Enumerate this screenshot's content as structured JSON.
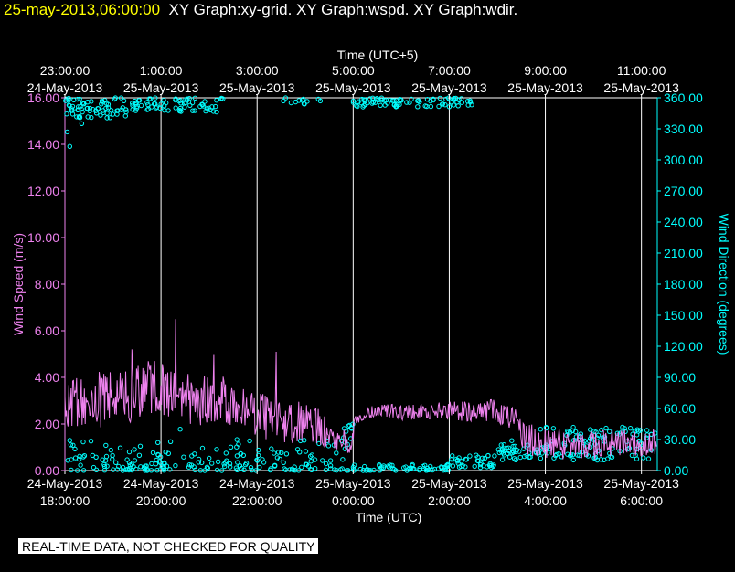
{
  "header": {
    "datetime": "25-may-2013,06:00:00",
    "graphs": "XY Graph:xy-grid.  XY Graph:wspd.  XY Graph:wdir."
  },
  "disclaimer": "REAL-TIME DATA, NOT CHECKED FOR QUALITY",
  "colors": {
    "background": "#000000",
    "speed": "#ee82ee",
    "direction": "#00ffff",
    "axis": "#ffffff",
    "header_date": "#ffff00"
  },
  "chart_data": {
    "type": "line",
    "x_start_hours": 0,
    "x_end_hours": 12.33,
    "top_axis": {
      "label": "Time (UTC+5)",
      "ticks": [
        {
          "h": 0,
          "time": "23:00:00",
          "date": "24-May-2013"
        },
        {
          "h": 2,
          "time": "1:00:00",
          "date": "25-May-2013"
        },
        {
          "h": 4,
          "time": "3:00:00",
          "date": "25-May-2013"
        },
        {
          "h": 6,
          "time": "5:00:00",
          "date": "25-May-2013"
        },
        {
          "h": 8,
          "time": "7:00:00",
          "date": "25-May-2013"
        },
        {
          "h": 10,
          "time": "9:00:00",
          "date": "25-May-2013"
        },
        {
          "h": 12,
          "time": "11:00:00",
          "date": "25-May-2013"
        }
      ]
    },
    "bottom_axis": {
      "label": "Time (UTC)",
      "ticks": [
        {
          "h": 0,
          "date": "24-May-2013",
          "time": "18:00:00"
        },
        {
          "h": 2,
          "date": "24-May-2013",
          "time": "20:00:00"
        },
        {
          "h": 4,
          "date": "24-May-2013",
          "time": "22:00:00"
        },
        {
          "h": 6,
          "date": "25-May-2013",
          "time": "0:00:00"
        },
        {
          "h": 8,
          "date": "25-May-2013",
          "time": "2:00:00"
        },
        {
          "h": 10,
          "date": "25-May-2013",
          "time": "4:00:00"
        },
        {
          "h": 12,
          "date": "25-May-2013",
          "time": "6:00:00"
        }
      ]
    },
    "left_axis": {
      "label": "Wind Speed (m/s)",
      "min": 0,
      "max": 16,
      "tick_labels": [
        "0.00",
        "2.00",
        "4.00",
        "6.00",
        "8.00",
        "10.00",
        "12.00",
        "14.00",
        "16.00"
      ]
    },
    "right_axis": {
      "label": "Wind Direction (degrees)",
      "min": 0,
      "max": 360,
      "tick_labels": [
        "0.00",
        "30.00",
        "60.00",
        "90.00",
        "120.00",
        "150.00",
        "180.00",
        "210.00",
        "240.00",
        "270.00",
        "300.00",
        "330.00",
        "360.00"
      ]
    },
    "series": [
      {
        "name": "Wind Speed",
        "axis": "left",
        "style": "line",
        "anchors": [
          [
            0.0,
            2.6
          ],
          [
            0.2,
            3.0
          ],
          [
            0.5,
            3.2
          ],
          [
            0.8,
            3.0
          ],
          [
            1.0,
            3.3
          ],
          [
            1.3,
            3.1
          ],
          [
            1.5,
            3.4
          ],
          [
            1.8,
            3.6
          ],
          [
            2.0,
            3.5
          ],
          [
            2.3,
            3.2
          ],
          [
            2.6,
            3.1
          ],
          [
            3.0,
            3.0
          ],
          [
            3.3,
            3.1
          ],
          [
            3.6,
            2.9
          ],
          [
            4.0,
            2.4
          ],
          [
            4.3,
            2.2
          ],
          [
            4.6,
            2.0
          ],
          [
            5.0,
            2.1
          ],
          [
            5.3,
            1.9
          ],
          [
            5.6,
            1.6
          ],
          [
            5.8,
            1.4
          ],
          [
            5.95,
            1.0
          ],
          [
            6.05,
            2.2
          ],
          [
            6.2,
            2.3
          ],
          [
            6.5,
            2.6
          ],
          [
            7.0,
            2.5
          ],
          [
            7.5,
            2.5
          ],
          [
            8.0,
            2.6
          ],
          [
            8.5,
            2.5
          ],
          [
            8.9,
            2.6
          ],
          [
            9.2,
            2.3
          ],
          [
            9.45,
            2.0
          ],
          [
            9.55,
            1.3
          ],
          [
            9.8,
            1.3
          ],
          [
            10.0,
            1.2
          ],
          [
            10.5,
            1.1
          ],
          [
            11.0,
            1.1
          ],
          [
            11.5,
            1.2
          ],
          [
            12.0,
            1.1
          ],
          [
            12.33,
            1.2
          ]
        ],
        "noise": [
          [
            0.0,
            1.2
          ],
          [
            3.5,
            1.1
          ],
          [
            5.5,
            0.8
          ],
          [
            6.05,
            0.25
          ],
          [
            9.2,
            0.5
          ],
          [
            9.5,
            0.7
          ],
          [
            12.33,
            0.6
          ]
        ],
        "peaks": [
          [
            2.3,
            6.5
          ],
          [
            3.1,
            5.0
          ],
          [
            4.4,
            5.1
          ],
          [
            1.4,
            5.2
          ]
        ]
      },
      {
        "name": "Wind Direction",
        "axis": "right",
        "style": "points",
        "clusters": [
          {
            "h0": 0.0,
            "h1": 1.3,
            "lo": 340,
            "hi": 360,
            "n": 70
          },
          {
            "h0": 1.4,
            "h1": 3.3,
            "lo": 346,
            "hi": 360,
            "n": 70
          },
          {
            "h0": 4.2,
            "h1": 5.4,
            "lo": 352,
            "hi": 360,
            "n": 12
          },
          {
            "h0": 6.0,
            "h1": 8.5,
            "lo": 351,
            "hi": 360,
            "n": 80
          },
          {
            "h0": 0.0,
            "h1": 5.9,
            "lo": 0,
            "hi": 30,
            "n": 200
          },
          {
            "h0": 5.8,
            "h1": 6.0,
            "lo": 20,
            "hi": 45,
            "n": 10
          },
          {
            "h0": 6.0,
            "h1": 8.0,
            "lo": 0,
            "hi": 6,
            "n": 60
          },
          {
            "h0": 8.0,
            "h1": 9.0,
            "lo": 3,
            "hi": 15,
            "n": 40
          },
          {
            "h0": 9.0,
            "h1": 10.0,
            "lo": 10,
            "hi": 30,
            "n": 45
          },
          {
            "h0": 10.0,
            "h1": 12.33,
            "lo": 10,
            "hi": 42,
            "n": 100
          }
        ],
        "outliers": [
          [
            0.1,
            313
          ],
          [
            0.05,
            327
          ],
          [
            0.35,
            335
          ],
          [
            2.2,
            28
          ],
          [
            2.4,
            40
          ],
          [
            5.9,
            43
          ],
          [
            9.9,
            40
          ],
          [
            11.5,
            36
          ],
          [
            11.0,
            30
          ],
          [
            12.2,
            35
          ]
        ]
      }
    ]
  }
}
